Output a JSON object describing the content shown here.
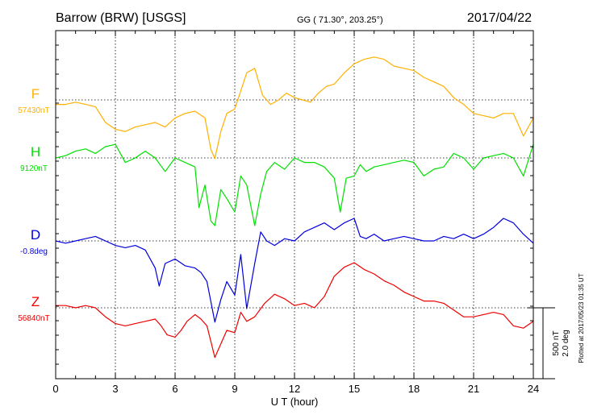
{
  "header": {
    "station": "Barrow (BRW)  [USGS]",
    "coords": "GG ( 71.30°, 203.25°)",
    "date": "2017/04/22"
  },
  "side": {
    "scale_nt": "500 nT",
    "scale_deg": "2.0 deg",
    "plotted": "Plotted at 2017/05/23 01:35 UT"
  },
  "colors": {
    "F": "#ffb000",
    "H": "#00e000",
    "D": "#0000dd",
    "Z": "#ee0000"
  },
  "chart_data": {
    "type": "line",
    "xlabel": "U T (hour)",
    "xlim": [
      0,
      24
    ],
    "xticks": [
      0,
      3,
      6,
      9,
      12,
      15,
      18,
      21,
      24
    ],
    "xtick_labels": [
      "0",
      "3",
      "6",
      "9",
      "12",
      "15",
      "18",
      "21",
      "24"
    ],
    "grid": true,
    "series": [
      {
        "key": "F",
        "name": "F",
        "baseline": "57430nT",
        "color": "#ffb000",
        "x": [
          0,
          0.5,
          1,
          1.5,
          2,
          2.5,
          3,
          3.5,
          4,
          4.5,
          5,
          5.5,
          6,
          6.5,
          7,
          7.5,
          7.8,
          8,
          8.3,
          8.6,
          9,
          9.3,
          9.6,
          10,
          10.4,
          10.8,
          11.2,
          11.6,
          12,
          12.4,
          12.8,
          13.2,
          13.6,
          14,
          14.5,
          15,
          15.5,
          16,
          16.5,
          17,
          17.5,
          18,
          18.5,
          19,
          19.5,
          20,
          20.5,
          21,
          21.5,
          22,
          22.5,
          23,
          23.5,
          24
        ],
        "y": [
          -0.2,
          -0.2,
          -0.1,
          -0.2,
          -0.3,
          -1.0,
          -1.3,
          -1.4,
          -1.2,
          -1.1,
          -1.0,
          -1.2,
          -0.8,
          -0.6,
          -0.5,
          -0.8,
          -2.2,
          -2.6,
          -1.4,
          -0.6,
          -0.4,
          0.4,
          1.2,
          1.4,
          0.2,
          -0.2,
          0.0,
          0.3,
          0.1,
          0.0,
          -0.1,
          0.3,
          0.6,
          0.7,
          1.2,
          1.6,
          1.8,
          1.9,
          1.8,
          1.5,
          1.4,
          1.3,
          1.0,
          0.8,
          0.6,
          0.1,
          -0.2,
          -0.6,
          -0.7,
          -0.8,
          -0.6,
          -0.6,
          -1.6,
          -0.8
        ]
      },
      {
        "key": "H",
        "name": "H",
        "baseline": "9120nT",
        "color": "#00e000",
        "x": [
          0,
          0.5,
          1,
          1.5,
          2,
          2.5,
          3,
          3.5,
          4,
          4.5,
          5,
          5.5,
          6,
          6.5,
          7,
          7.2,
          7.5,
          7.8,
          8,
          8.3,
          8.6,
          9,
          9.3,
          9.6,
          10,
          10.3,
          10.6,
          11,
          11.5,
          12,
          12.5,
          13,
          13.5,
          14,
          14.3,
          14.6,
          15,
          15.3,
          15.6,
          16,
          16.5,
          17,
          17.5,
          18,
          18.5,
          19,
          19.5,
          20,
          20.5,
          21,
          21.5,
          22,
          22.5,
          23,
          23.5,
          24
        ],
        "y": [
          0.0,
          0.1,
          0.3,
          0.4,
          0.2,
          0.5,
          0.6,
          -0.2,
          0.0,
          0.3,
          0.0,
          -0.6,
          0.0,
          -0.2,
          -0.4,
          -2.2,
          -1.2,
          -2.8,
          -3.0,
          -1.4,
          -1.8,
          -2.4,
          -0.8,
          -1.2,
          -3.0,
          -1.6,
          -0.6,
          -0.2,
          -0.5,
          0.0,
          -0.2,
          -0.2,
          -0.4,
          -0.9,
          -2.4,
          -0.9,
          -0.8,
          -0.3,
          -0.6,
          -0.4,
          -0.3,
          -0.2,
          -0.1,
          -0.2,
          -0.8,
          -0.5,
          -0.4,
          0.2,
          0.0,
          -0.5,
          0.0,
          0.1,
          0.2,
          0.0,
          -0.8,
          0.6
        ]
      },
      {
        "key": "D",
        "name": "D",
        "baseline": "-0.8deg",
        "color": "#0000dd",
        "x": [
          0,
          0.5,
          1,
          1.5,
          2,
          2.5,
          3,
          3.5,
          4,
          4.5,
          5,
          5.2,
          5.5,
          6,
          6.5,
          7,
          7.3,
          7.6,
          8,
          8.3,
          8.6,
          9,
          9.3,
          9.6,
          10,
          10.3,
          10.6,
          11,
          11.5,
          12,
          12.5,
          13,
          13.5,
          14,
          14.5,
          15,
          15.3,
          15.6,
          16,
          16.5,
          17,
          17.5,
          18,
          18.5,
          19,
          19.5,
          20,
          20.5,
          21,
          21.5,
          22,
          22.5,
          23,
          23.5,
          24
        ],
        "y": [
          0.0,
          -0.1,
          0.0,
          0.1,
          0.2,
          0.0,
          -0.2,
          -0.3,
          -0.2,
          -0.4,
          -1.2,
          -2.0,
          -1.0,
          -0.8,
          -1.1,
          -1.2,
          -1.4,
          -1.8,
          -3.6,
          -2.6,
          -1.8,
          -2.4,
          -0.6,
          -3.0,
          -1.0,
          0.4,
          0.0,
          -0.2,
          0.1,
          0.0,
          0.4,
          0.6,
          0.8,
          0.5,
          0.8,
          1.0,
          0.2,
          0.1,
          0.3,
          0.0,
          0.1,
          0.2,
          0.1,
          0.0,
          0.0,
          0.2,
          0.1,
          0.3,
          0.1,
          0.3,
          0.6,
          1.0,
          0.8,
          0.3,
          -0.1
        ]
      },
      {
        "key": "Z",
        "name": "Z",
        "baseline": "56840nT",
        "color": "#ee0000",
        "x": [
          0,
          0.5,
          1,
          1.5,
          2,
          2.5,
          3,
          3.5,
          4,
          4.5,
          5,
          5.3,
          5.6,
          6,
          6.3,
          6.6,
          7,
          7.3,
          7.6,
          8,
          8.3,
          8.6,
          9,
          9.3,
          9.6,
          10,
          10.5,
          11,
          11.5,
          12,
          12.5,
          13,
          13.5,
          14,
          14.5,
          15,
          15.5,
          16,
          16.5,
          17,
          17.5,
          18,
          18.5,
          19,
          19.5,
          20,
          20.5,
          21,
          21.5,
          22,
          22.5,
          23,
          23.5,
          24
        ],
        "y": [
          0.1,
          0.1,
          0.0,
          0.1,
          0.0,
          -0.4,
          -0.7,
          -0.8,
          -0.7,
          -0.6,
          -0.5,
          -0.8,
          -1.2,
          -1.3,
          -1.0,
          -0.6,
          -0.3,
          -0.5,
          -0.8,
          -2.2,
          -1.6,
          -1.0,
          -1.1,
          -0.2,
          -0.6,
          -0.4,
          0.2,
          0.6,
          0.4,
          0.1,
          0.2,
          0.0,
          0.5,
          1.4,
          1.8,
          2.0,
          1.7,
          1.5,
          1.2,
          1.0,
          0.7,
          0.5,
          0.3,
          0.3,
          0.2,
          -0.1,
          -0.4,
          -0.4,
          -0.3,
          -0.2,
          -0.3,
          -0.8,
          -0.9,
          -0.6
        ]
      }
    ]
  }
}
